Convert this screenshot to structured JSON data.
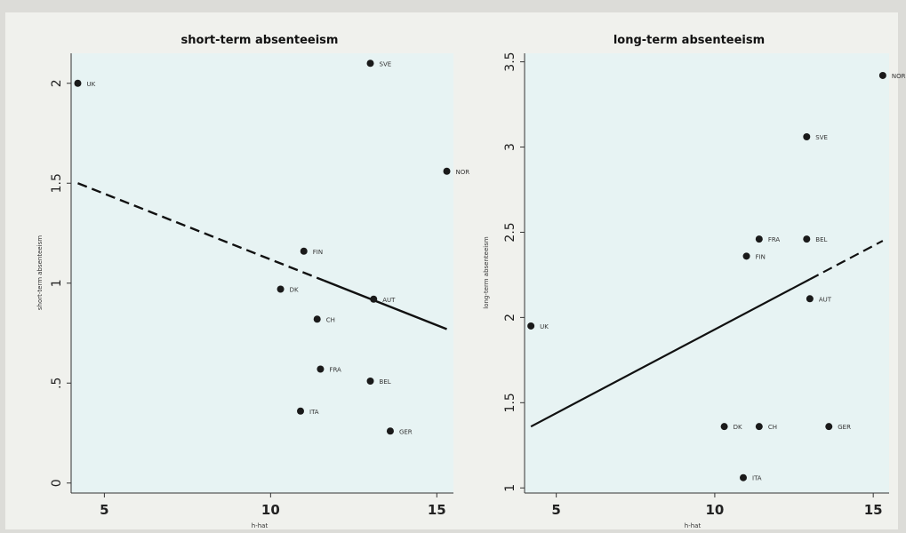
{
  "chart_data": [
    {
      "type": "scatter",
      "title": "short-term absenteeism",
      "xlabel": "h-hat",
      "ylabel": "short-term absenteeism",
      "xlim": [
        4,
        15.5
      ],
      "ylim": [
        -0.05,
        2.15
      ],
      "x_ticks": [
        5,
        10,
        15
      ],
      "x_tick_labels": [
        "5",
        "10",
        "15"
      ],
      "y_ticks": [
        0,
        0.5,
        1,
        1.5,
        2
      ],
      "y_tick_labels": [
        "0",
        ".5",
        "1",
        "1.5",
        "2"
      ],
      "grid": false,
      "points": [
        {
          "label": "UK",
          "x": 4.2,
          "y": 2.0
        },
        {
          "label": "SVE",
          "x": 13.0,
          "y": 2.1
        },
        {
          "label": "NOR",
          "x": 15.3,
          "y": 1.56
        },
        {
          "label": "FIN",
          "x": 11.0,
          "y": 1.16
        },
        {
          "label": "DK",
          "x": 10.3,
          "y": 0.97
        },
        {
          "label": "AUT",
          "x": 13.1,
          "y": 0.92
        },
        {
          "label": "CH",
          "x": 11.4,
          "y": 0.82
        },
        {
          "label": "FRA",
          "x": 11.5,
          "y": 0.57
        },
        {
          "label": "BEL",
          "x": 13.0,
          "y": 0.51
        },
        {
          "label": "ITA",
          "x": 10.9,
          "y": 0.36
        },
        {
          "label": "GER",
          "x": 13.6,
          "y": 0.26
        }
      ],
      "fit_line": {
        "style": "dashed",
        "solid_until_x": 11.6,
        "from": {
          "x": 4.2,
          "y": 1.5
        },
        "to": {
          "x": 15.3,
          "y": 0.77
        }
      }
    },
    {
      "type": "scatter",
      "title": "long-term absenteeism",
      "xlabel": "h-hat",
      "ylabel": "long-term absenteeism",
      "xlim": [
        4,
        15.5
      ],
      "ylim": [
        0.97,
        3.55
      ],
      "x_ticks": [
        5,
        10,
        15
      ],
      "x_tick_labels": [
        "5",
        "10",
        "15"
      ],
      "y_ticks": [
        1,
        1.5,
        2,
        2.5,
        3,
        3.5
      ],
      "y_tick_labels": [
        "1",
        "1.5",
        "2",
        "2.5",
        "3",
        "3.5"
      ],
      "grid": false,
      "points": [
        {
          "label": "NOR",
          "x": 15.3,
          "y": 3.42
        },
        {
          "label": "SVE",
          "x": 12.9,
          "y": 3.06
        },
        {
          "label": "FRA",
          "x": 11.4,
          "y": 2.46
        },
        {
          "label": "BEL",
          "x": 12.9,
          "y": 2.46
        },
        {
          "label": "FIN",
          "x": 11.0,
          "y": 2.36
        },
        {
          "label": "AUT",
          "x": 13.0,
          "y": 2.11
        },
        {
          "label": "UK",
          "x": 4.2,
          "y": 1.95
        },
        {
          "label": "DK",
          "x": 10.3,
          "y": 1.36
        },
        {
          "label": "CH",
          "x": 11.4,
          "y": 1.36
        },
        {
          "label": "GER",
          "x": 13.6,
          "y": 1.36
        },
        {
          "label": "ITA",
          "x": 10.9,
          "y": 1.06
        }
      ],
      "fit_line": {
        "style": "dashed",
        "solid_until_x": 13.0,
        "from": {
          "x": 4.2,
          "y": 1.36
        },
        "to": {
          "x": 15.3,
          "y": 2.45
        }
      }
    }
  ]
}
